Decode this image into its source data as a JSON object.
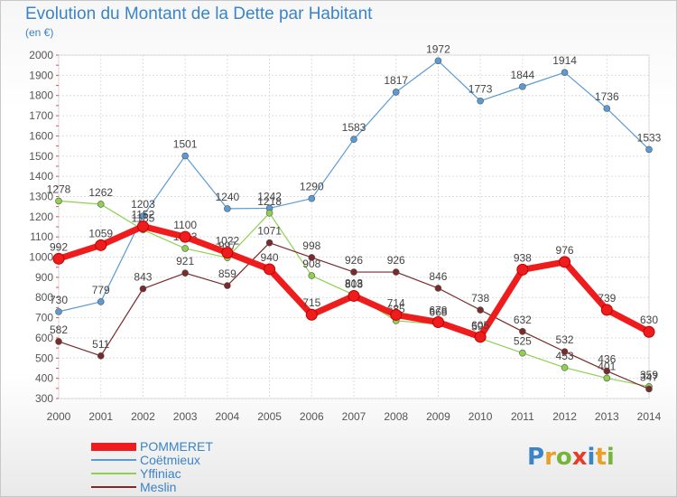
{
  "title": "Evolution du Montant de la Dette par Habitant",
  "unit_label": "(en €)",
  "logo": {
    "text": "Proxiti",
    "letters": [
      "P",
      "r",
      "o",
      "x",
      "i",
      "t",
      "i"
    ],
    "colors": [
      "#3a84c8",
      "#e8a028",
      "#78b43c",
      "#e83c28",
      "#3a84c8",
      "#e8a028",
      "#78b43c"
    ]
  },
  "chart_data": {
    "type": "line",
    "title": "Evolution du Montant de la Dette par Habitant",
    "ylabel": "(en €)",
    "x": [
      "2000",
      "2001",
      "2002",
      "2003",
      "2004",
      "2005",
      "2006",
      "2007",
      "2008",
      "2009",
      "2010",
      "2011",
      "2012",
      "2013",
      "2014"
    ],
    "ylim": [
      300,
      2000
    ],
    "yticks": [
      300,
      400,
      500,
      600,
      700,
      800,
      900,
      1000,
      1100,
      1200,
      1300,
      1400,
      1500,
      1600,
      1700,
      1800,
      1900,
      2000
    ],
    "grid": true,
    "legend_position": "bottom-left",
    "series": [
      {
        "name": "POMMERET",
        "color": "#ee1c1c",
        "values": [
          992,
          1059,
          1152,
          1100,
          1022,
          940,
          715,
          808,
          714,
          678,
          605,
          938,
          976,
          739,
          630
        ],
        "labels": [
          "992",
          "1059",
          "1152",
          "1100",
          "1022",
          "940",
          "715",
          "808",
          "714",
          "678",
          "605",
          "938",
          "976",
          "739",
          "630"
        ]
      },
      {
        "name": "Coëtmieux",
        "color": "#5b9bd5",
        "values": [
          730,
          779,
          1203,
          1501,
          1240,
          1242,
          1290,
          1583,
          1817,
          1972,
          1773,
          1844,
          1914,
          1736,
          1533
        ],
        "labels": [
          "730",
          "779",
          "1203",
          "1501",
          "1240",
          "1242",
          "1290",
          "1583",
          "1817",
          "1972",
          "1773",
          "1844",
          "1914",
          "1736",
          "1533"
        ]
      },
      {
        "name": "Yffiniac",
        "color": "#8fd14f",
        "values": [
          1278,
          1262,
          1135,
          1043,
          997,
          1218,
          908,
          813,
          685,
          668,
          598,
          525,
          453,
          401,
          359
        ],
        "labels": [
          "1278",
          "1262",
          "1135",
          "1043",
          "997",
          "1218",
          "908",
          "813",
          "685",
          "668",
          "598",
          "525",
          "453",
          "401",
          "359"
        ]
      },
      {
        "name": "Meslin",
        "color": "#7a2a2a",
        "values": [
          582,
          511,
          843,
          921,
          859,
          1071,
          998,
          926,
          926,
          846,
          738,
          632,
          532,
          436,
          347
        ],
        "labels": [
          "582",
          "511",
          "843",
          "921",
          "859",
          "1071",
          "998",
          "926",
          "926",
          "846",
          "738",
          "632",
          "532",
          "436",
          "347"
        ]
      }
    ]
  }
}
